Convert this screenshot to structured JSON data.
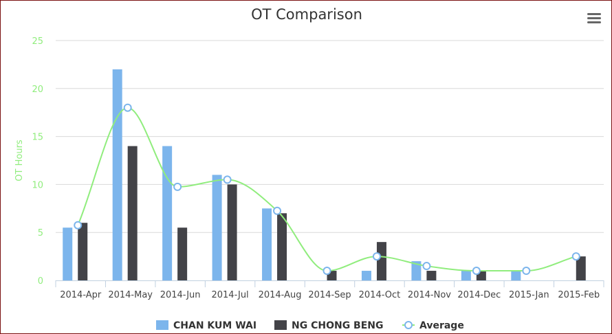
{
  "chart_data": {
    "type": "bar",
    "title": "OT Comparison",
    "ylabel": "OT Hours",
    "xlabel": "",
    "ylim": [
      0,
      25
    ],
    "yticks": [
      0,
      5,
      10,
      15,
      20,
      25
    ],
    "grid": true,
    "legend_position": "bottom",
    "categories": [
      "2014-Apr",
      "2014-May",
      "2014-Jun",
      "2014-Jul",
      "2014-Aug",
      "2014-Sep",
      "2014-Oct",
      "2014-Nov",
      "2014-Dec",
      "2015-Jan",
      "2015-Feb"
    ],
    "series": [
      {
        "name": "CHAN KUM WAI",
        "type": "bar",
        "color": "#7cb5ec",
        "values": [
          5.5,
          22,
          14,
          11,
          7.5,
          0,
          1,
          2,
          1,
          1,
          0
        ]
      },
      {
        "name": "NG CHONG BENG",
        "type": "bar",
        "color": "#434348",
        "values": [
          6,
          14,
          5.5,
          10,
          7,
          1,
          4,
          1,
          1,
          0,
          2.5
        ]
      },
      {
        "name": "Average",
        "type": "spline",
        "color": "#90ed7d",
        "marker_color": "#7cb5ec",
        "values": [
          5.75,
          18,
          9.75,
          10.5,
          7.25,
          1,
          2.5,
          1.5,
          1,
          1,
          2.5
        ]
      }
    ]
  },
  "icons": {
    "menu": "hamburger-menu-icon"
  }
}
